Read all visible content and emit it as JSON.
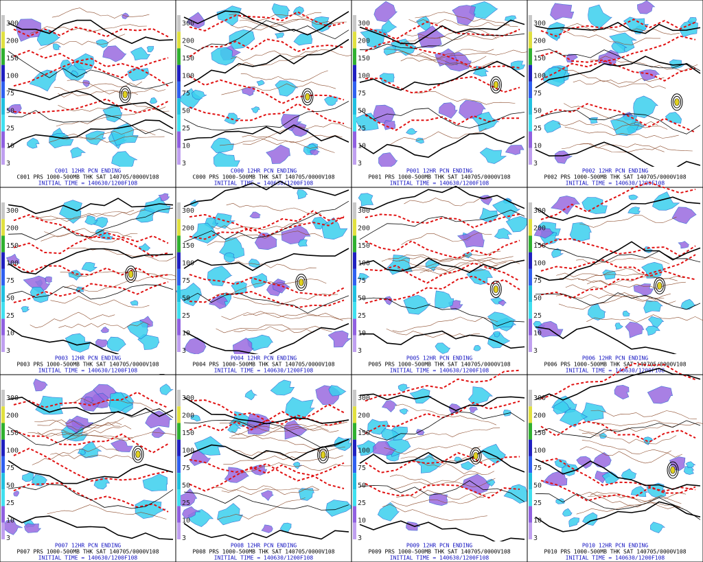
{
  "colorbar_labels": [
    "300",
    "200",
    "150",
    "100",
    "75",
    "50",
    "25",
    "10",
    "3"
  ],
  "panels": [
    {
      "title": "C001 12HR PCN ENDING",
      "subtitle": "C001 PRS 1000-500MB THK SAT 140705/0000V108",
      "initial_time": "INITIAL TIME = 140630/1200F108"
    },
    {
      "title": "C000 12HR PCN ENDING",
      "subtitle": "C000 PRS 1000-500MB THK SAT 140705/0000V108",
      "initial_time": "INITIAL TIME = 140630/1200F108"
    },
    {
      "title": "P001 12HR PCN ENDING",
      "subtitle": "P001 PRS 1000-500MB THK SAT 140705/0000V108",
      "initial_time": "INITIAL TIME = 140630/1200F108"
    },
    {
      "title": "P002 12HR PCN ENDING",
      "subtitle": "P002 PRS 1000-500MB THK SAT 140705/0000V108",
      "initial_time": "INITIAL TIME = 140630/1200F108"
    },
    {
      "title": "P003 12HR PCN ENDING",
      "subtitle": "P003 PRS 1000-500MB THK SAT 140705/0000V108",
      "initial_time": "INITIAL TIME = 140630/1200F108"
    },
    {
      "title": "P004 12HR PCN ENDING",
      "subtitle": "P004 PRS 1000-500MB THK SAT 140705/0000V108",
      "initial_time": "INITIAL TIME = 140630/1200F108"
    },
    {
      "title": "P005 12HR PCN ENDING",
      "subtitle": "P005 PRS 1000-500MB THK SAT 140705/0000V108",
      "initial_time": "INITIAL TIME = 140630/1200F108"
    },
    {
      "title": "P006 12HR PCN ENDING",
      "subtitle": "P006 PRS 1000-500MB THK SAT 140705/0000V108",
      "initial_time": "INITIAL TIME = 140630/1200F108"
    },
    {
      "title": "P007 12HR PCN ENDING",
      "subtitle": "P007 PRS 1000-500MB THK SAT 140705/0000V108",
      "initial_time": "INITIAL TIME = 140630/1200F108"
    },
    {
      "title": "P008 12HR PCN ENDING",
      "subtitle": "P008 PRS 1000-500MB THK SAT 140705/0000V108",
      "initial_time": "INITIAL TIME = 140630/1200F108"
    },
    {
      "title": "P009 12HR PCN ENDING",
      "subtitle": "P009 PRS 1000-500MB THK SAT 140705/0000V108",
      "initial_time": "INITIAL TIME = 140630/1200F108"
    },
    {
      "title": "P010 12HR PCN ENDING",
      "subtitle": "P010 PRS 1000-500MB THK SAT 140705/0000V108",
      "initial_time": "INITIAL TIME = 140630/1200F108"
    }
  ]
}
